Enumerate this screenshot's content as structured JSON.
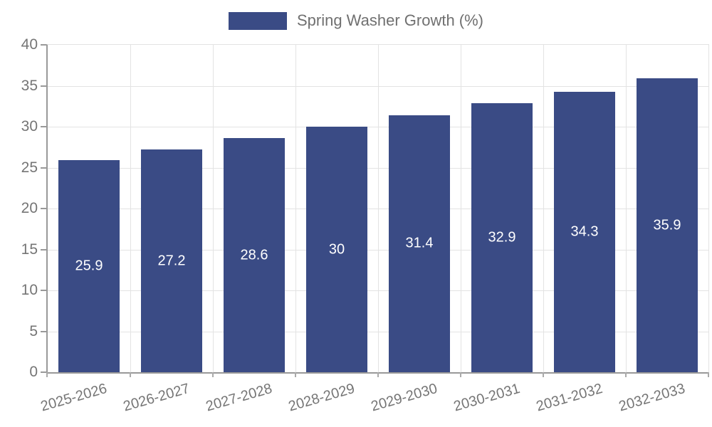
{
  "legend": {
    "label": "Spring Washer Growth (%)",
    "swatch_color": "#3a4b85"
  },
  "chart_data": {
    "type": "bar",
    "title": "",
    "xlabel": "",
    "ylabel": "",
    "categories": [
      "2025-2026",
      "2026-2027",
      "2027-2028",
      "2028-2029",
      "2029-2030",
      "2030-2031",
      "2031-2032",
      "2032-2033"
    ],
    "series": [
      {
        "name": "Spring Washer Growth (%)",
        "values": [
          25.9,
          27.2,
          28.6,
          30,
          31.4,
          32.9,
          34.3,
          35.9
        ]
      }
    ],
    "value_labels_shown": true,
    "ylim": [
      0,
      40
    ],
    "ytick_step": 5,
    "yticks": [
      0,
      5,
      10,
      15,
      20,
      25,
      30,
      35,
      40
    ],
    "grid": true,
    "legend_position": "top",
    "colors": {
      "bar": "#3a4b85",
      "grid": "#e3e3e3",
      "axis": "#999999",
      "tick_label": "#757575",
      "value_label": "#ffffff",
      "legend_text": "#707070",
      "background": "#ffffff"
    }
  }
}
